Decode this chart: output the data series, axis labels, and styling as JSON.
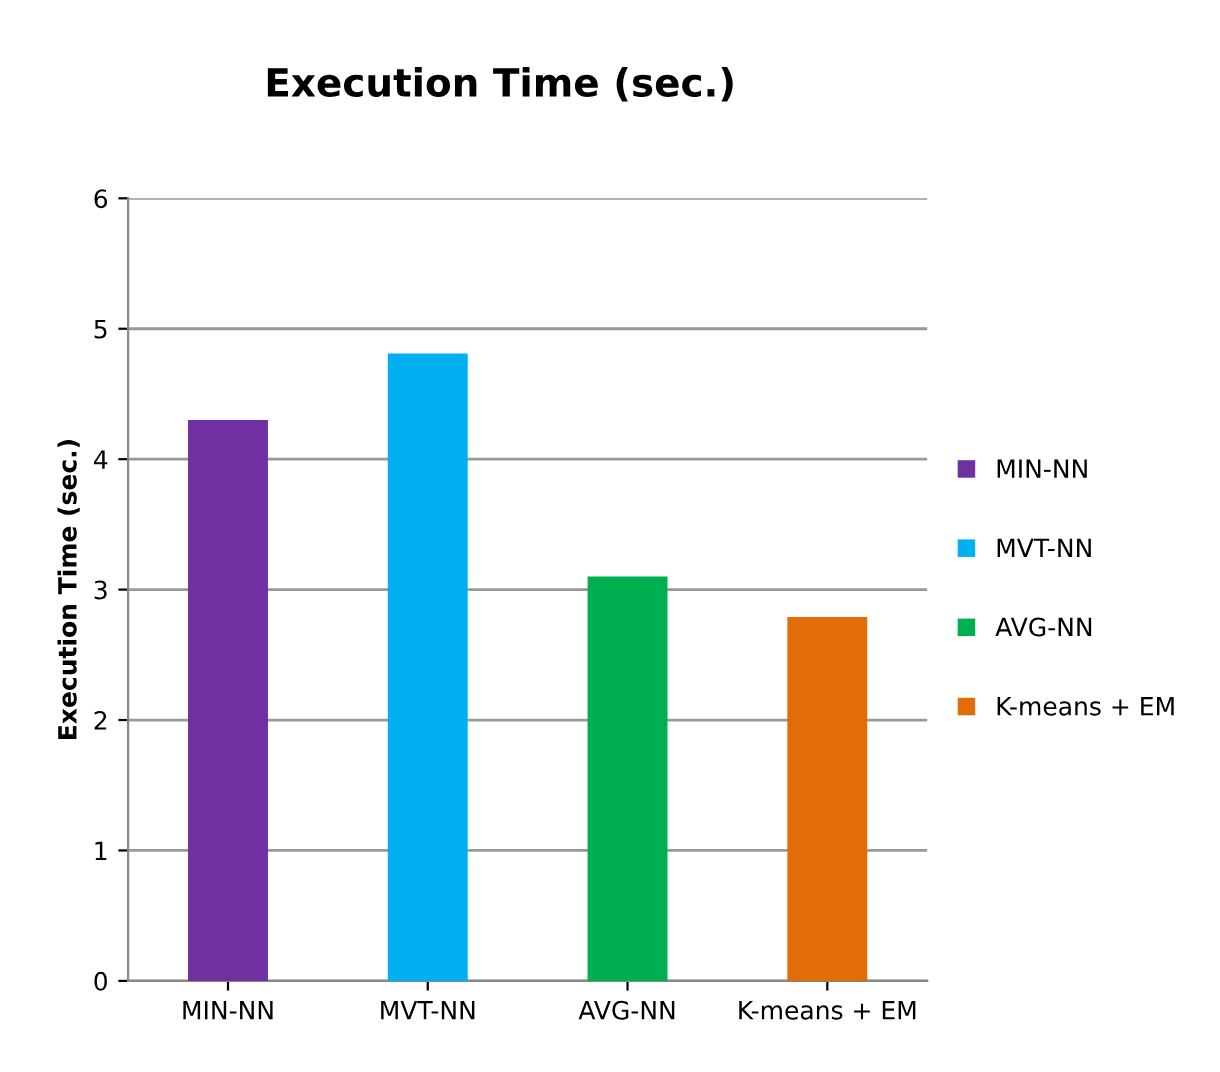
{
  "chart_data": {
    "type": "bar",
    "title": "Execution Time (sec.)",
    "ylabel": "Execution Time (sec.)",
    "categories": [
      "MIN-NN",
      "MVT-NN",
      "AVG-NN",
      "K-means + EM"
    ],
    "series": [
      {
        "name": "MIN-NN",
        "color": "#7030a0",
        "values": [
          4.3,
          null,
          null,
          null
        ]
      },
      {
        "name": "MVT-NN",
        "color": "#00b0f0",
        "values": [
          null,
          4.81,
          null,
          null
        ]
      },
      {
        "name": "AVG-NN",
        "color": "#00b050",
        "values": [
          null,
          null,
          3.1,
          null
        ]
      },
      {
        "name": "K-means + EM",
        "color": "#e36c0a",
        "values": [
          null,
          null,
          null,
          2.79
        ]
      }
    ],
    "ylim": [
      0,
      6
    ],
    "yticks": [
      0,
      1,
      2,
      3,
      4,
      5,
      6
    ],
    "grid": "y",
    "legend": "right"
  }
}
